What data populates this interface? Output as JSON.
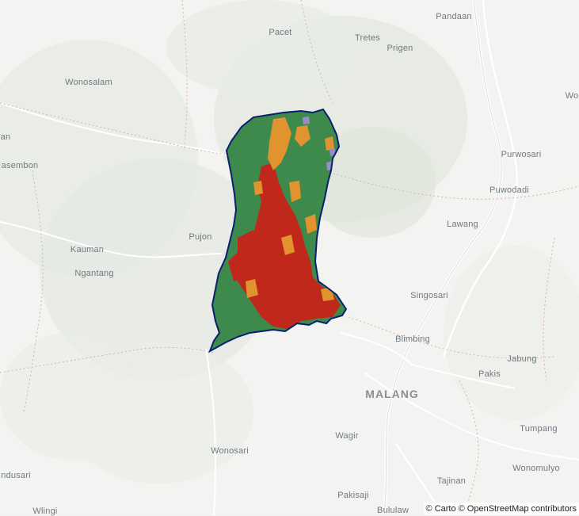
{
  "map": {
    "basemap": "Carto light",
    "attribution": "© Carto © OpenStreetMap contributors",
    "labels": [
      {
        "name": "Pandaan"
      },
      {
        "name": "Pacet"
      },
      {
        "name": "Tretes"
      },
      {
        "name": "Prigen"
      },
      {
        "name": "Wonosalam"
      },
      {
        "name": "Wo"
      },
      {
        "name": "an"
      },
      {
        "name": "asembon"
      },
      {
        "name": "Purwosari"
      },
      {
        "name": "Puwodadi"
      },
      {
        "name": "Lawang"
      },
      {
        "name": "Pujon"
      },
      {
        "name": "Kauman"
      },
      {
        "name": "Ngantang"
      },
      {
        "name": "Singosari"
      },
      {
        "name": "Blimbing"
      },
      {
        "name": "Jabung"
      },
      {
        "name": "Pakis"
      },
      {
        "name": "MALANG"
      },
      {
        "name": "Wagir"
      },
      {
        "name": "Tumpang"
      },
      {
        "name": "Wonosari"
      },
      {
        "name": "ndusari"
      },
      {
        "name": "Wonomulyo"
      },
      {
        "name": "Tajinan"
      },
      {
        "name": "Pakisaji"
      },
      {
        "name": "Wlingi"
      },
      {
        "name": "Bululaw"
      }
    ],
    "region": {
      "outline_color": "#0a1f6e",
      "classes": [
        {
          "color": "#3e8a4d"
        },
        {
          "color": "#c0281c"
        },
        {
          "color": "#e0932f"
        },
        {
          "color": "#9a8bc6"
        }
      ]
    }
  }
}
